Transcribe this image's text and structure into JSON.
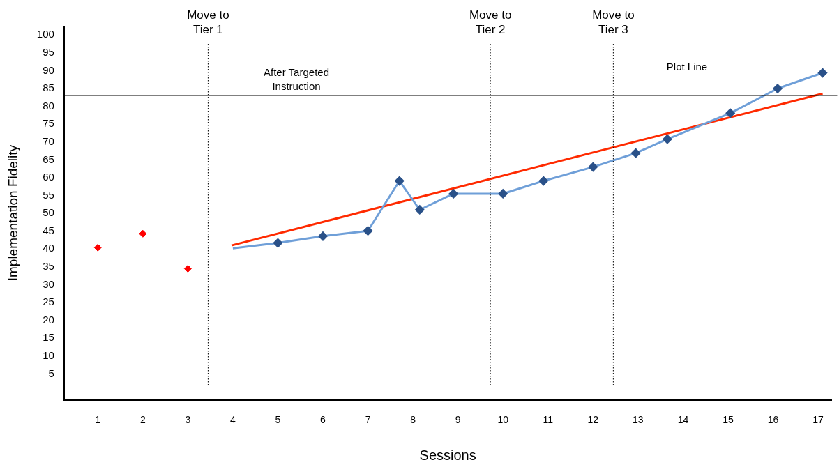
{
  "chart_data": {
    "type": "line",
    "xlabel": "Sessions",
    "ylabel": "Implementation Fidelity",
    "xlim": [
      0.25,
      17.3
    ],
    "xticks": [
      1,
      2,
      3,
      4,
      5,
      6,
      7,
      8,
      9,
      10,
      11,
      12,
      13,
      14,
      15,
      16,
      17
    ],
    "ylim": [
      -2.2,
      102.4
    ],
    "yticks": [
      5,
      10,
      15,
      20,
      25,
      30,
      35,
      40,
      45,
      50,
      55,
      60,
      65,
      70,
      75,
      80,
      85,
      90,
      95,
      100
    ],
    "grid": false,
    "legend": false,
    "marker": "diamond",
    "series": [
      {
        "type": "scatter",
        "color": "#ff0000",
        "x": [
          1,
          2,
          3
        ],
        "values": [
          40.4,
          44.3,
          34.5
        ]
      },
      {
        "type": "line",
        "color": "#6f9fd8",
        "colors": [
          null,
          "#2a5189",
          "#2a5189",
          "#2a5189",
          "#2a5189",
          "#2a5189",
          "#2a5189",
          "#2a5189",
          "#2a5189",
          "#2a5189",
          "#2a5189",
          "#2a5189",
          "#2a5189",
          "#2a5189",
          "#2a5189"
        ],
        "x": [
          4,
          5,
          6,
          7,
          7.7,
          8.15,
          8.9,
          10,
          10.9,
          12,
          12.95,
          13.65,
          15.05,
          16.1,
          17.1
        ],
        "values": [
          40.2,
          41.7,
          43.6,
          45.1,
          59.1,
          51,
          55.5,
          55.5,
          59.1,
          63,
          66.9,
          70.8,
          78.1,
          85,
          89.4
        ]
      },
      {
        "type": "line",
        "color": "#ff2a00",
        "marker": "none",
        "x": [
          3.97,
          17.1
        ],
        "values": [
          41,
          83.6
        ]
      }
    ],
    "ref_lines": [
      {
        "axis": "y",
        "value": 83.1,
        "color": "#000000",
        "line_style": "solid"
      },
      {
        "axis": "x",
        "value": 3.45,
        "label": "Move to Tier 1",
        "color": "#000000",
        "line_style": "dotted"
      },
      {
        "axis": "x",
        "value": 9.72,
        "label": "Move to Tier 2",
        "color": "#000000",
        "line_style": "dotted"
      },
      {
        "axis": "x",
        "value": 12.45,
        "label": "Move to Tier 3",
        "color": "#000000",
        "line_style": "dotted"
      }
    ],
    "annotations": [
      "After Targeted Instruction",
      "Plot Line"
    ]
  }
}
